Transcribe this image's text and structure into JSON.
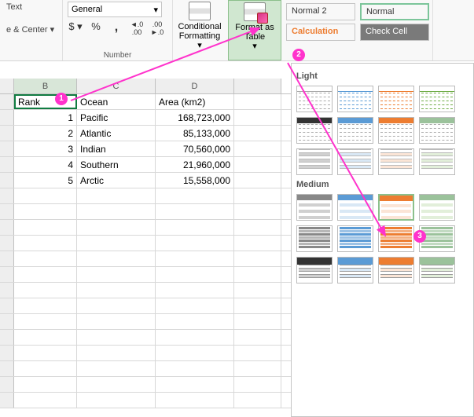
{
  "ribbon": {
    "alignment": {
      "text_label": "Text",
      "merge_center_label": "e & Center"
    },
    "number": {
      "group_label": "Number",
      "format_dropdown": "General",
      "buttons": {
        "currency": "$",
        "percent": "%",
        "comma": ",",
        "inc_dec": "⁰⁰",
        "dec_dec": "⁰⁰"
      }
    },
    "styles": {
      "conditional_formatting_label": "Conditional\nFormatting",
      "format_as_table_label": "Format as\nTable",
      "normal2": "Normal 2",
      "normal": "Normal",
      "calculation": "Calculation",
      "check_cell": "Check Cell"
    }
  },
  "sheet": {
    "columns": [
      "B",
      "C",
      "D"
    ],
    "selected_column": "B",
    "headers": {
      "rank": "Rank",
      "ocean": "Ocean",
      "area": "Area (km2)"
    },
    "rows": [
      {
        "rank": "1",
        "ocean": "Pacific",
        "area": "168,723,000"
      },
      {
        "rank": "2",
        "ocean": "Atlantic",
        "area": "85,133,000"
      },
      {
        "rank": "3",
        "ocean": "Indian",
        "area": "70,560,000"
      },
      {
        "rank": "4",
        "ocean": "Southern",
        "area": "21,960,000"
      },
      {
        "rank": "5",
        "ocean": "Arctic",
        "area": "15,558,000"
      }
    ]
  },
  "gallery": {
    "section_light": "Light",
    "section_medium": "Medium",
    "light_rows": [
      {
        "type": "dashed-header-on-white",
        "colors": [
          "clr-gray",
          "clr-blue",
          "clr-orange",
          "clr-green"
        ]
      },
      {
        "type": "solid-header-dashed-body",
        "header_bg": [
          "bg-black",
          "bg-blue",
          "bg-orange",
          "bg-green"
        ]
      },
      {
        "type": "banded-light",
        "colors": [
          "bg-lgray",
          "bg-lblue",
          "bg-lorange",
          "bg-lgreen"
        ]
      }
    ],
    "medium_rows": [
      {
        "type": "solid-header-banded-light",
        "header_bg": [
          "bg-gray",
          "bg-blue",
          "bg-orange",
          "bg-green"
        ],
        "body_bg": [
          "bg-lgray",
          "bg-lblue",
          "bg-lorange",
          "bg-lgreen"
        ],
        "highlight_index": 2
      },
      {
        "type": "solid-banded-dark",
        "colors": [
          "bg-gray",
          "bg-blue",
          "bg-orange",
          "bg-green"
        ]
      },
      {
        "type": "blocky-banded",
        "header_bg": [
          "bg-black",
          "bg-blue",
          "bg-orange",
          "bg-green"
        ],
        "body_bg": [
          "bg-lgray",
          "bg-lblue",
          "bg-lorange",
          "bg-lgreen"
        ]
      }
    ]
  },
  "callouts": {
    "c1": "1",
    "c2": "2",
    "c3": "3"
  },
  "colors": {
    "accent_pink": "#ff33cc",
    "sel_green": "#107c41",
    "hl_border": "#8cc08c"
  }
}
